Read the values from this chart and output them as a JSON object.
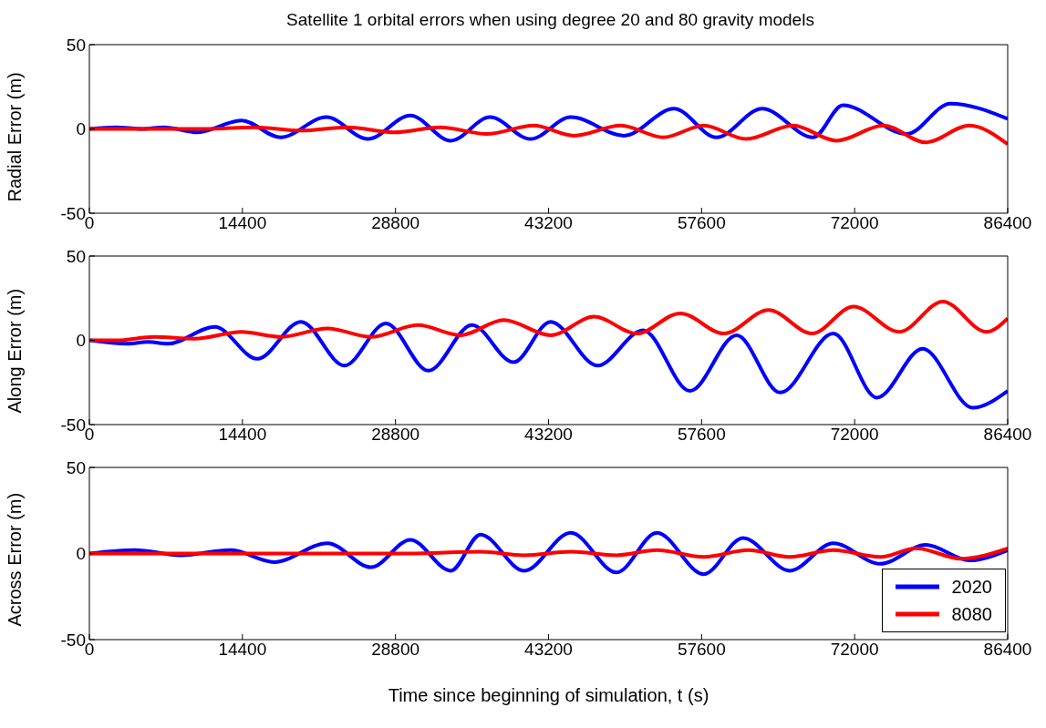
{
  "chart_data": [
    {
      "type": "line",
      "title": "Satellite 1 orbital errors when using degree 20 and 80 gravity models",
      "ylabel": "Radial Error (m)",
      "xlim": [
        0,
        86400
      ],
      "xticks": [
        0,
        14400,
        28800,
        43200,
        57600,
        72000,
        86400
      ],
      "ylim": [
        -50,
        50
      ],
      "yticks": [
        -50,
        0,
        50
      ],
      "grid": false,
      "legend": false,
      "series": [
        {
          "color": "#0000ff",
          "x": [
            0,
            2500,
            5000,
            7000,
            10200,
            14300,
            18000,
            22300,
            26200,
            30200,
            34000,
            37700,
            41500,
            45300,
            50300,
            55000,
            59000,
            63300,
            68100,
            70900,
            76900,
            81000,
            86400
          ],
          "values": [
            0,
            1,
            0,
            1,
            -2,
            5,
            -5,
            7,
            -6,
            8,
            -7,
            7,
            -6,
            7,
            -4,
            12,
            -5,
            12,
            -5,
            14,
            -3,
            15,
            6
          ]
        },
        {
          "color": "#ff0000",
          "x": [
            0,
            5000,
            11000,
            15500,
            19900,
            24300,
            28700,
            33000,
            37400,
            41800,
            45600,
            50000,
            54000,
            57800,
            61800,
            66200,
            70300,
            74700,
            78700,
            82800,
            86400
          ],
          "values": [
            0,
            0,
            0,
            1,
            -1,
            1,
            -2,
            1,
            -3,
            2,
            -4,
            2,
            -5,
            2,
            -6,
            2,
            -7,
            2,
            -8,
            2,
            -9
          ]
        }
      ]
    },
    {
      "type": "line",
      "ylabel": "Along Error (m)",
      "xlim": [
        0,
        86400
      ],
      "xticks": [
        0,
        14400,
        28800,
        43200,
        57600,
        72000,
        86400
      ],
      "ylim": [
        -50,
        50
      ],
      "yticks": [
        -50,
        0,
        50
      ],
      "grid": false,
      "legend": false,
      "series": [
        {
          "color": "#0000ff",
          "x": [
            0,
            3600,
            5500,
            7400,
            11800,
            15800,
            19900,
            24000,
            27900,
            31900,
            36000,
            39900,
            43400,
            47800,
            52100,
            56500,
            60900,
            65000,
            70000,
            74100,
            78400,
            83100,
            86400
          ],
          "values": [
            0,
            -2,
            -1,
            -2,
            8,
            -11,
            11,
            -15,
            10,
            -18,
            9,
            -13,
            11,
            -15,
            6,
            -30,
            3,
            -31,
            4,
            -34,
            -5,
            -40,
            -30
          ]
        },
        {
          "color": "#ff0000",
          "x": [
            0,
            2500,
            6100,
            9900,
            14300,
            18000,
            22400,
            26500,
            30900,
            34900,
            39000,
            43400,
            47500,
            51500,
            55600,
            59700,
            63900,
            68000,
            71900,
            76200,
            80300,
            84400,
            86400
          ],
          "values": [
            0,
            0,
            2,
            1,
            5,
            2,
            7,
            2,
            9,
            3,
            12,
            3,
            14,
            4,
            16,
            4,
            18,
            4,
            20,
            5,
            23,
            5,
            13
          ]
        }
      ]
    },
    {
      "type": "line",
      "ylabel": "Across Error (m)",
      "xlabel": "Time since beginning of simulation, t (s)",
      "xlim": [
        0,
        86400
      ],
      "xticks": [
        0,
        14400,
        28800,
        43200,
        57600,
        72000,
        86400
      ],
      "ylim": [
        -50,
        50
      ],
      "yticks": [
        -50,
        0,
        50
      ],
      "grid": false,
      "legend": "bottom right",
      "series": [
        {
          "name": "2020",
          "color": "#0000ff",
          "x": [
            0,
            4300,
            8600,
            13300,
            17400,
            22400,
            26500,
            30200,
            34000,
            36800,
            40900,
            45300,
            49600,
            53400,
            57800,
            61500,
            65900,
            70000,
            74400,
            78700,
            82800,
            86400
          ],
          "values": [
            0,
            2,
            -1,
            2,
            -5,
            6,
            -8,
            8,
            -10,
            11,
            -10,
            12,
            -11,
            12,
            -12,
            9,
            -10,
            6,
            -6,
            5,
            -4,
            2
          ]
        },
        {
          "name": "8080",
          "color": "#ff0000",
          "x": [
            0,
            10000,
            20000,
            30000,
            36800,
            40900,
            45300,
            49600,
            53400,
            57800,
            62000,
            65900,
            70000,
            74400,
            77800,
            82000,
            86400
          ],
          "values": [
            0,
            0,
            0,
            0,
            1,
            -1,
            1,
            -1,
            2,
            -2,
            2,
            -2,
            2,
            -2,
            3,
            -3,
            3
          ]
        }
      ]
    }
  ]
}
